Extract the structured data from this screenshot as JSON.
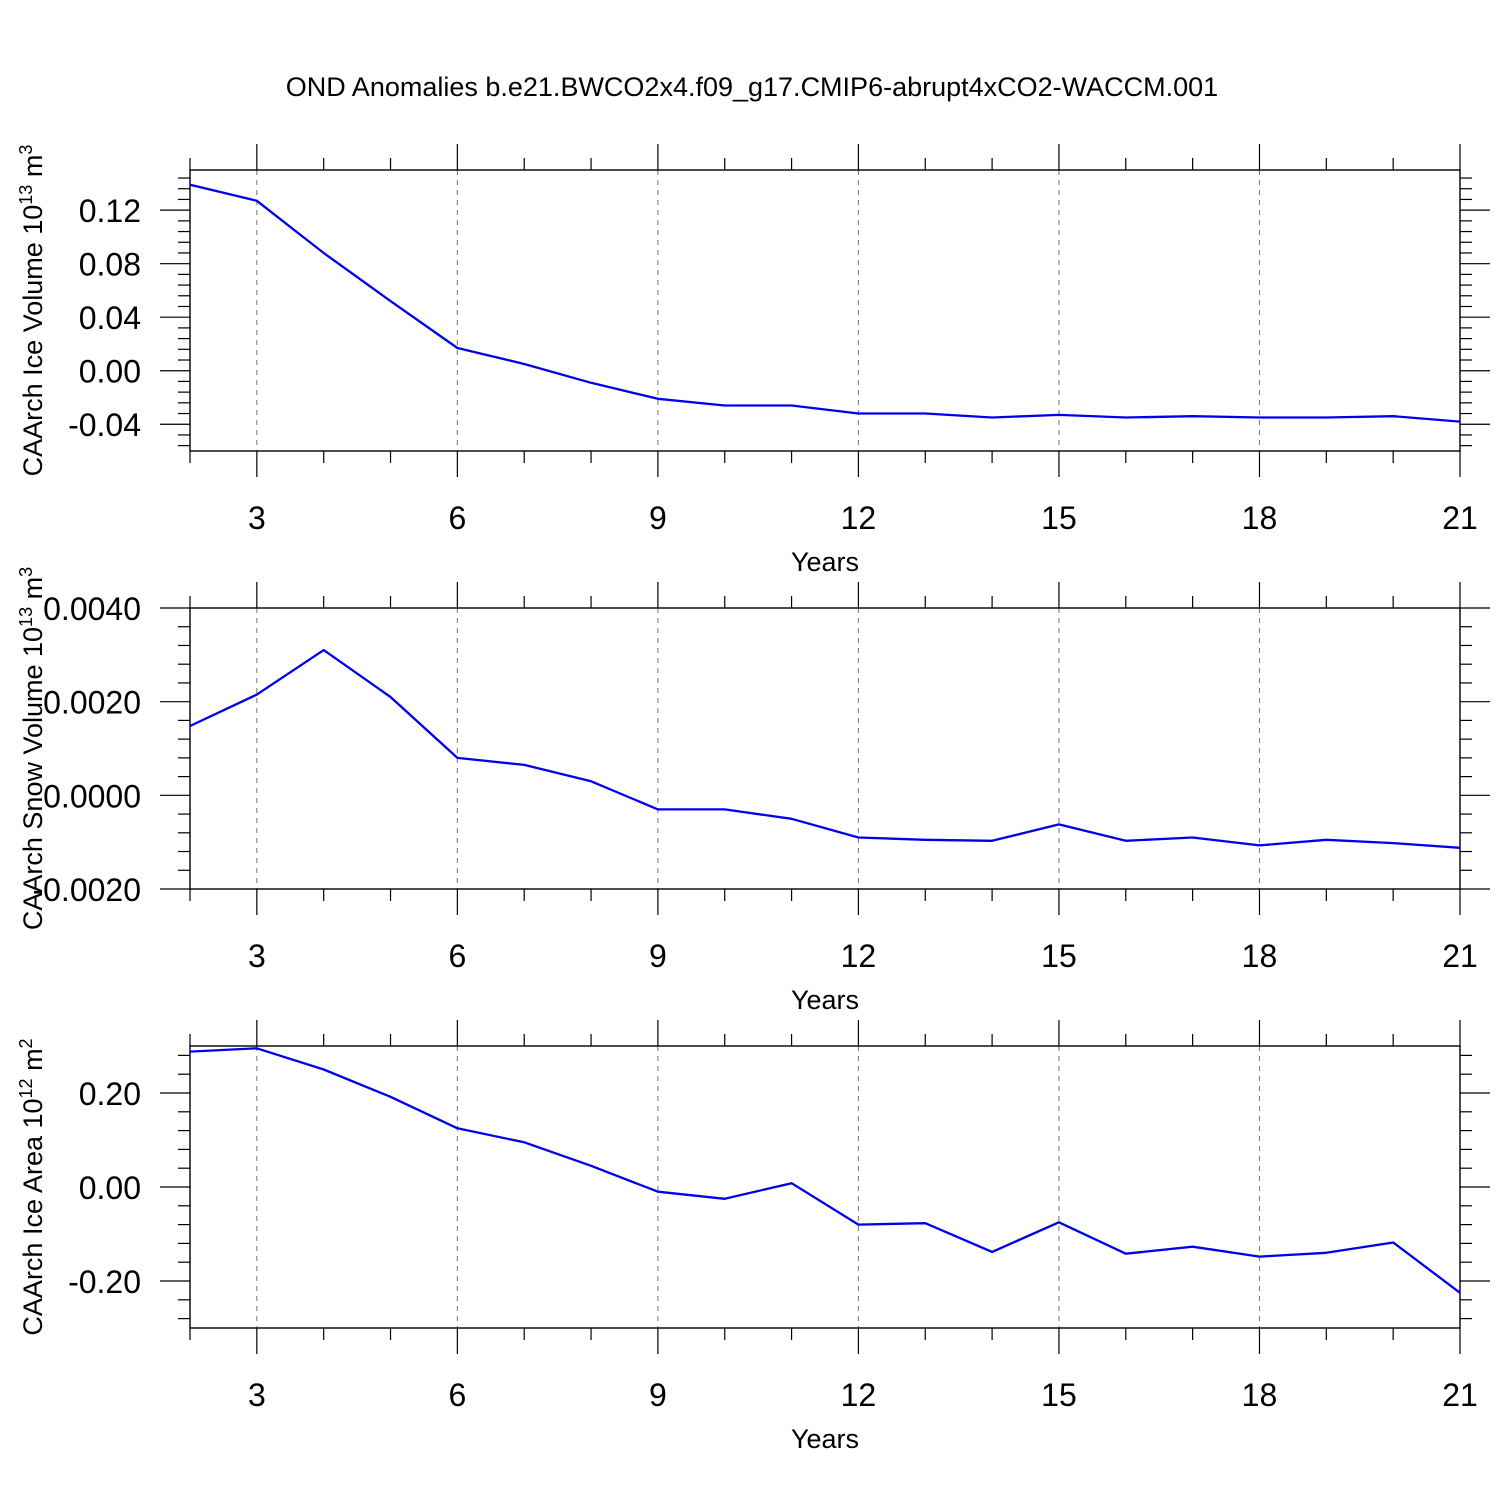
{
  "figure": {
    "title": "OND Anomalies b.e21.BWCO2x4.f09_g17.CMIP6-abrupt4xCO2-WACCM.001",
    "line_color": "#0000ee",
    "grid_color": "#808080"
  },
  "chart_data": [
    {
      "type": "line",
      "title": "OND Anomalies b.e21.BWCO2x4.f09_g17.CMIP6-abrupt4xCO2-WACCM.001",
      "xlabel": "Years",
      "ylabel": "CAArch Ice Volume",
      "ylabel_unit_base": "10",
      "ylabel_unit_exp": "13",
      "ylabel_unit_name": "m",
      "ylabel_unit_pow": "3",
      "xlim": [
        2,
        21
      ],
      "ylim": [
        -0.06,
        0.15
      ],
      "xticks": [
        3,
        6,
        9,
        12,
        15,
        18,
        21
      ],
      "xtick_labels": [
        "3",
        "6",
        "9",
        "12",
        "15",
        "18",
        "21"
      ],
      "yticks": [
        0.12,
        0.08,
        0.04,
        0.0,
        -0.04
      ],
      "ytick_labels": [
        "0.12",
        "0.08",
        "0.04",
        "0.00",
        "-0.04"
      ],
      "x": [
        2,
        3,
        4,
        5,
        6,
        7,
        8,
        9,
        10,
        11,
        12,
        13,
        14,
        15,
        16,
        17,
        18,
        19,
        20,
        21
      ],
      "series": [
        {
          "name": "CAArch Ice Volume",
          "values": [
            0.139,
            0.127,
            0.088,
            0.052,
            0.017,
            0.005,
            -0.009,
            -0.021,
            -0.026,
            -0.026,
            -0.032,
            -0.032,
            -0.035,
            -0.033,
            -0.035,
            -0.034,
            -0.035,
            -0.035,
            -0.034,
            -0.038
          ]
        }
      ]
    },
    {
      "type": "line",
      "xlabel": "Years",
      "ylabel": "CAArch Snow Volume",
      "ylabel_unit_base": "10",
      "ylabel_unit_exp": "13",
      "ylabel_unit_name": "m",
      "ylabel_unit_pow": "3",
      "xlim": [
        2,
        21
      ],
      "ylim": [
        -0.002,
        0.004
      ],
      "xticks": [
        3,
        6,
        9,
        12,
        15,
        18,
        21
      ],
      "xtick_labels": [
        "3",
        "6",
        "9",
        "12",
        "15",
        "18",
        "21"
      ],
      "yticks": [
        0.004,
        0.002,
        0.0,
        -0.002
      ],
      "ytick_labels": [
        "0.0040",
        "0.0020",
        "0.0000",
        "-0.0020"
      ],
      "x": [
        2,
        3,
        4,
        5,
        6,
        7,
        8,
        9,
        10,
        11,
        12,
        13,
        14,
        15,
        16,
        17,
        18,
        19,
        20,
        21
      ],
      "series": [
        {
          "name": "CAArch Snow Volume",
          "values": [
            0.00148,
            0.00215,
            0.0031,
            0.0021,
            0.0008,
            0.00065,
            0.0003,
            -0.0003,
            -0.0003,
            -0.0005,
            -0.0009,
            -0.00095,
            -0.00097,
            -0.00062,
            -0.00097,
            -0.0009,
            -0.00107,
            -0.00095,
            -0.00102,
            -0.00112
          ]
        }
      ]
    },
    {
      "type": "line",
      "xlabel": "Years",
      "ylabel": "CAArch Ice Area",
      "ylabel_unit_base": "10",
      "ylabel_unit_exp": "12",
      "ylabel_unit_name": "m",
      "ylabel_unit_pow": "2",
      "xlim": [
        2,
        21
      ],
      "ylim": [
        -0.3,
        0.3
      ],
      "xticks": [
        3,
        6,
        9,
        12,
        15,
        18,
        21
      ],
      "xtick_labels": [
        "3",
        "6",
        "9",
        "12",
        "15",
        "18",
        "21"
      ],
      "yticks": [
        0.2,
        0.0,
        -0.2
      ],
      "ytick_labels": [
        "0.20",
        "0.00",
        "-0.20"
      ],
      "x": [
        2,
        3,
        4,
        5,
        6,
        7,
        8,
        9,
        10,
        11,
        12,
        13,
        14,
        15,
        16,
        17,
        18,
        19,
        20,
        21
      ],
      "series": [
        {
          "name": "CAArch Ice Area",
          "values": [
            0.288,
            0.295,
            0.25,
            0.192,
            0.125,
            0.095,
            0.045,
            -0.01,
            -0.025,
            0.008,
            -0.08,
            -0.077,
            -0.138,
            -0.075,
            -0.142,
            -0.127,
            -0.148,
            -0.14,
            -0.118,
            -0.225
          ]
        }
      ]
    }
  ]
}
